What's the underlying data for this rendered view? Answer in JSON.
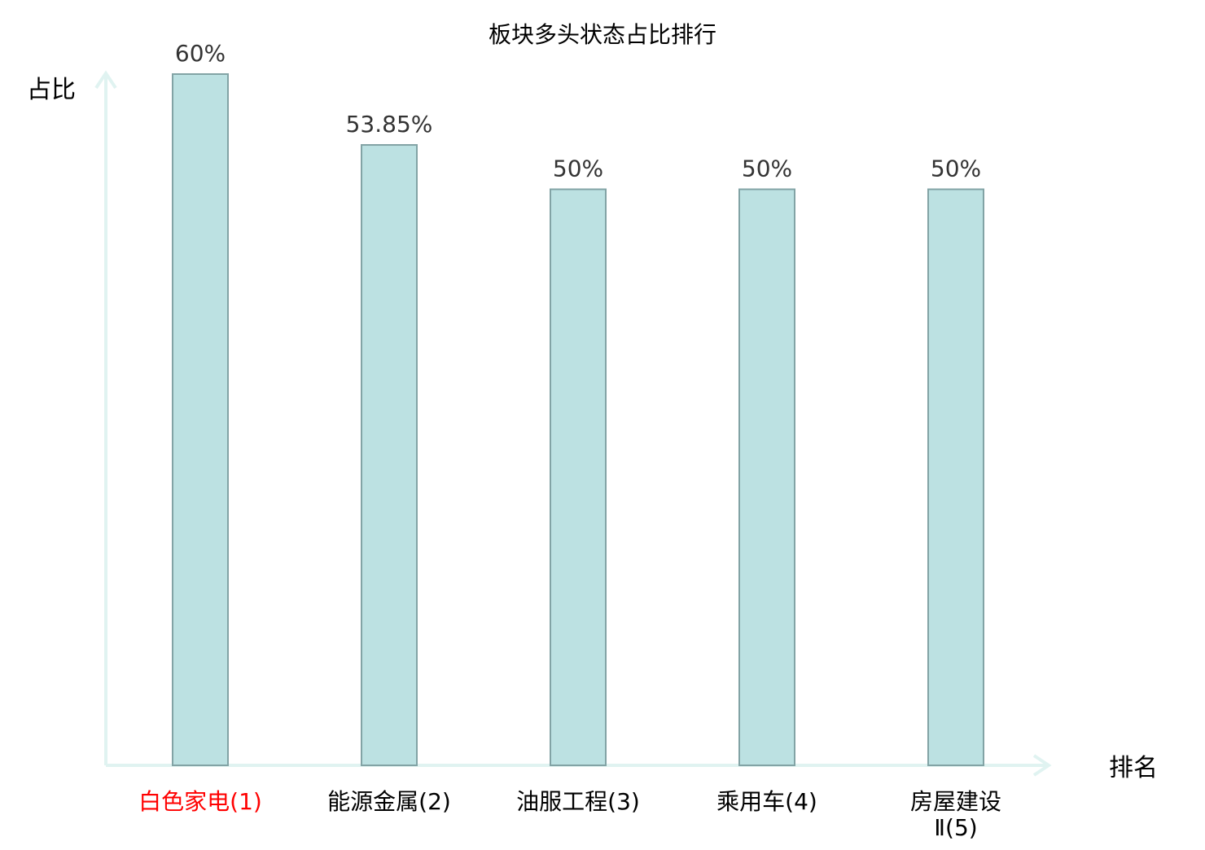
{
  "chart_data": {
    "type": "bar",
    "title": "板块多头状态占比排行",
    "ylabel": "占比",
    "xlabel": "排名",
    "categories": [
      [
        "白色家电",
        "(1)"
      ],
      [
        "能源金属",
        "(2)"
      ],
      [
        "油服工程",
        "(3)"
      ],
      [
        "乘用车",
        "(4)"
      ],
      [
        "房屋建设",
        "Ⅱ(5)"
      ]
    ],
    "values": [
      60,
      53.85,
      50,
      50,
      50
    ],
    "value_labels": [
      "60%",
      "53.85%",
      "50%",
      "50%",
      "50%"
    ],
    "highlight_index": 0,
    "ylim": [
      0,
      60
    ],
    "grid": false,
    "colors": {
      "bar_fill": "#bce1e2",
      "bar_stroke": "#82a3a5",
      "axis": "#e0f3f1",
      "label": "#000000",
      "value_label": "#333333",
      "highlight": "#ff0000"
    }
  }
}
